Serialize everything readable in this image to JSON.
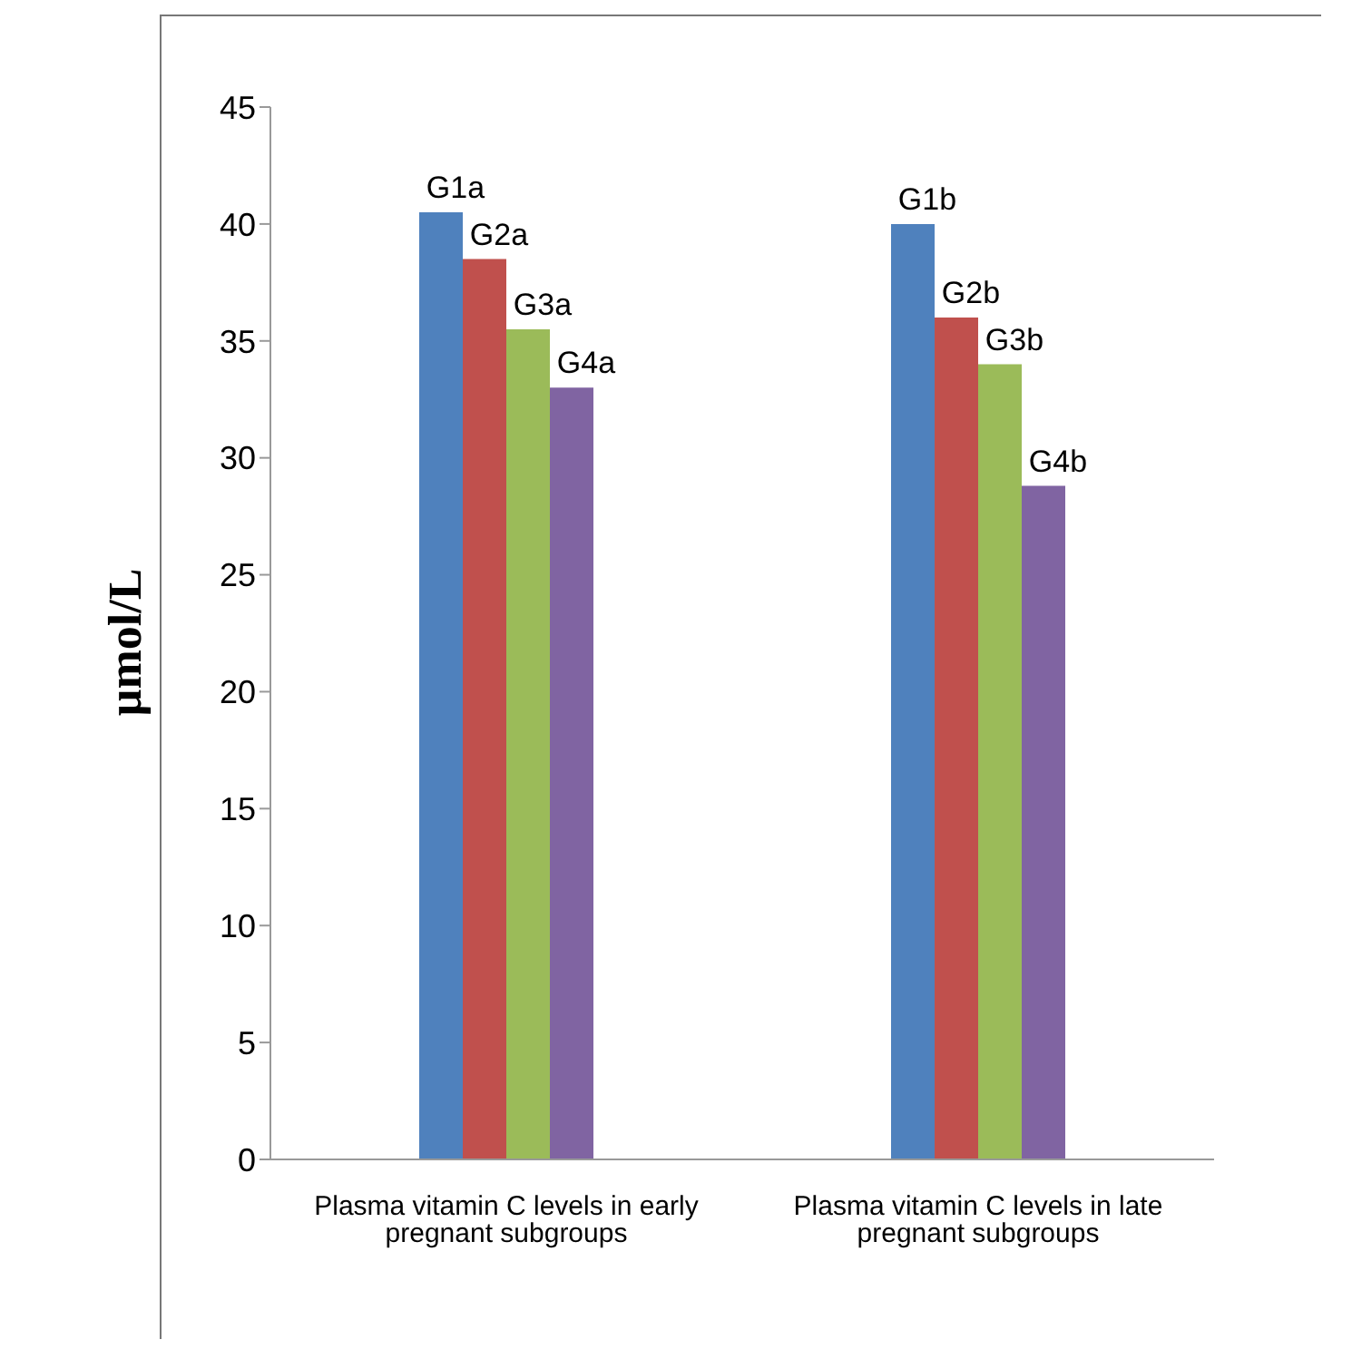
{
  "chart_data": {
    "type": "bar",
    "ylabel": "µmol/L",
    "categories": [
      "Plasma vitamin C levels in early pregnant subgroups",
      "Plasma vitamin C levels in late pregnant subgroups"
    ],
    "series": [
      {
        "color": "#4f81bd",
        "values": [
          40.5,
          40
        ],
        "value_labels": [
          "G1a",
          "G1b"
        ]
      },
      {
        "color": "#c0504d",
        "values": [
          38.5,
          36
        ],
        "value_labels": [
          "G2a",
          "G2b"
        ]
      },
      {
        "color": "#9bbb59",
        "values": [
          35.5,
          34
        ],
        "value_labels": [
          "G3a",
          "G3b"
        ]
      },
      {
        "color": "#8064a2",
        "values": [
          33,
          28.8
        ],
        "value_labels": [
          "G4a",
          "G4b"
        ]
      }
    ],
    "ylim": [
      0,
      45
    ],
    "yticks": [
      0,
      5,
      10,
      15,
      20,
      25,
      30,
      35,
      40,
      45
    ],
    "grid": false,
    "legend": false
  }
}
